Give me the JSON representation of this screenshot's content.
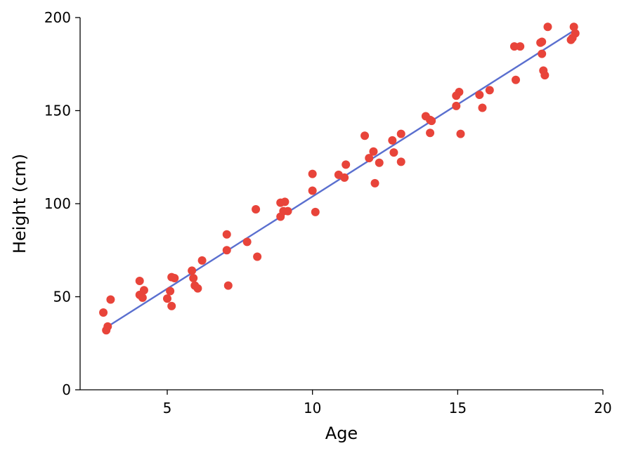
{
  "chart_data": {
    "type": "scatter",
    "title": "",
    "xlabel": "Age",
    "ylabel": "Height (cm)",
    "xlim": [
      2,
      20
    ],
    "ylim": [
      0,
      200
    ],
    "xticks": [
      5,
      10,
      15,
      20
    ],
    "yticks": [
      0,
      50,
      100,
      150,
      200
    ],
    "xtick_labels": [
      "5",
      "10",
      "15",
      "20"
    ],
    "ytick_labels": [
      "0",
      "50",
      "100",
      "150",
      "200"
    ],
    "grid": false,
    "legend": "none",
    "colors": {
      "points": "#e8443a",
      "trend": "#5a6fcf"
    },
    "series": [
      {
        "kind": "scatter",
        "points": [
          [
            2.8,
            41.5
          ],
          [
            2.9,
            32.0
          ],
          [
            2.95,
            34.0
          ],
          [
            3.05,
            48.5
          ],
          [
            4.05,
            58.5
          ],
          [
            4.05,
            51.0
          ],
          [
            4.15,
            49.5
          ],
          [
            4.2,
            53.5
          ],
          [
            5.0,
            49.0
          ],
          [
            5.1,
            53.0
          ],
          [
            5.15,
            45.0
          ],
          [
            5.15,
            60.5
          ],
          [
            5.25,
            60.0
          ],
          [
            5.85,
            64.0
          ],
          [
            5.9,
            60.0
          ],
          [
            5.95,
            56.0
          ],
          [
            6.05,
            54.5
          ],
          [
            6.2,
            69.5
          ],
          [
            7.05,
            83.5
          ],
          [
            7.05,
            75.0
          ],
          [
            7.1,
            56.0
          ],
          [
            7.75,
            79.5
          ],
          [
            8.05,
            97.0
          ],
          [
            8.1,
            71.5
          ],
          [
            8.9,
            93.0
          ],
          [
            8.9,
            100.5
          ],
          [
            9.0,
            96.0
          ],
          [
            9.05,
            101.0
          ],
          [
            9.15,
            96.0
          ],
          [
            10.0,
            116.0
          ],
          [
            10.0,
            107.0
          ],
          [
            10.1,
            95.5
          ],
          [
            10.9,
            115.5
          ],
          [
            11.1,
            114.0
          ],
          [
            11.15,
            121.0
          ],
          [
            11.8,
            136.5
          ],
          [
            11.95,
            124.5
          ],
          [
            12.1,
            128.0
          ],
          [
            12.15,
            111.0
          ],
          [
            12.3,
            122.0
          ],
          [
            12.75,
            134.0
          ],
          [
            12.8,
            127.5
          ],
          [
            13.05,
            137.5
          ],
          [
            13.05,
            122.5
          ],
          [
            13.9,
            147.0
          ],
          [
            14.05,
            145.0
          ],
          [
            14.05,
            138.0
          ],
          [
            14.1,
            144.5
          ],
          [
            14.95,
            158.0
          ],
          [
            14.95,
            152.5
          ],
          [
            15.05,
            160.0
          ],
          [
            15.1,
            137.5
          ],
          [
            15.75,
            158.5
          ],
          [
            15.85,
            151.5
          ],
          [
            16.1,
            161.0
          ],
          [
            16.95,
            184.5
          ],
          [
            17.0,
            166.5
          ],
          [
            17.15,
            184.5
          ],
          [
            17.85,
            186.5
          ],
          [
            17.9,
            187.0
          ],
          [
            17.9,
            180.5
          ],
          [
            17.95,
            171.5
          ],
          [
            18.0,
            169.0
          ],
          [
            18.1,
            195.0
          ],
          [
            18.9,
            188.0
          ],
          [
            18.95,
            189.0
          ],
          [
            19.0,
            195.0
          ],
          [
            19.05,
            191.5
          ]
        ]
      },
      {
        "kind": "line",
        "points": [
          [
            2.9,
            33.5
          ],
          [
            18.95,
            192.5
          ]
        ]
      }
    ]
  }
}
